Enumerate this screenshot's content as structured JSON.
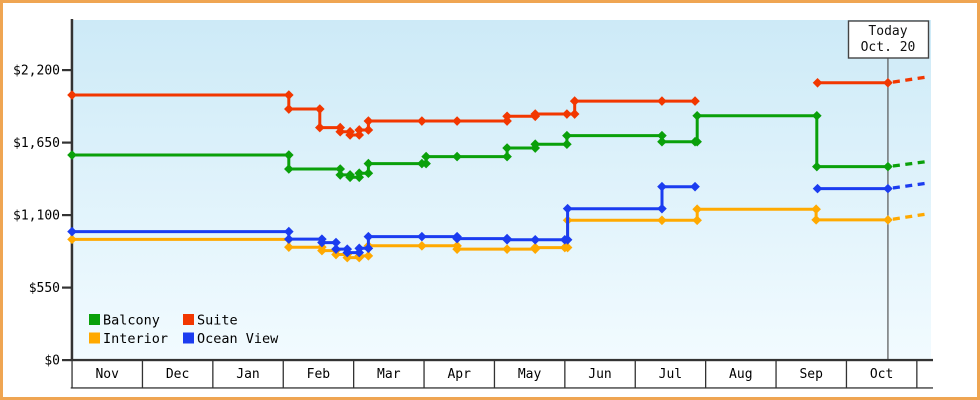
{
  "chart_data": {
    "type": "line",
    "subtype": "step-price-history",
    "title": "",
    "xlabel": "",
    "ylabel": "",
    "x_axis": {
      "months": [
        "Nov",
        "Dec",
        "Jan",
        "Feb",
        "Mar",
        "Apr",
        "May",
        "Jun",
        "Jul",
        "Aug",
        "Sep",
        "Oct"
      ]
    },
    "y_axis": {
      "ticks": [
        {
          "value": 2200,
          "label": "$2,200"
        },
        {
          "value": 1650,
          "label": "$1,650"
        },
        {
          "value": 1100,
          "label": "$1,100"
        },
        {
          "value": 550,
          "label": "$550"
        },
        {
          "value": 0,
          "label": "$0"
        }
      ],
      "ylim": [
        0,
        2580
      ]
    },
    "today": {
      "line1": "Today",
      "line2": "Oct. 20",
      "month_x": 11.59
    },
    "note": "x unit = months from Nov 1 (0 = Nov 1, 1 = Dec 1 ...). Gaps between segments = no price available.",
    "series": [
      {
        "name": "Interior",
        "color": "#ffa900",
        "segments": [
          [
            [
              0,
              915
            ],
            [
              3.08,
              915
            ],
            [
              3.08,
              856
            ],
            [
              3.55,
              856
            ],
            [
              3.55,
              830
            ],
            [
              3.75,
              830
            ],
            [
              3.75,
              800
            ],
            [
              3.91,
              800
            ],
            [
              3.91,
              777
            ],
            [
              4.08,
              777
            ],
            [
              4.08,
              790
            ],
            [
              4.21,
              790
            ],
            [
              4.21,
              866
            ],
            [
              4.97,
              866
            ],
            [
              5.47,
              866
            ],
            [
              5.47,
              841
            ],
            [
              6.18,
              841
            ],
            [
              6.58,
              841
            ],
            [
              6.58,
              853
            ],
            [
              7.0,
              853
            ],
            [
              7.04,
              853
            ],
            [
              7.04,
              1060
            ],
            [
              8.38,
              1060
            ],
            [
              8.88,
              1060
            ],
            [
              8.88,
              1144
            ],
            [
              10.57,
              1144
            ],
            [
              10.57,
              1063
            ],
            [
              11.59,
              1063
            ]
          ]
        ],
        "projection": [
          [
            11.66,
            1068
          ],
          [
            12.15,
            1108
          ]
        ]
      },
      {
        "name": "Ocean View",
        "color": "#1b3cf0",
        "segments": [
          [
            [
              0,
              974
            ],
            [
              3.08,
              974
            ],
            [
              3.08,
              917
            ],
            [
              3.55,
              917
            ],
            [
              3.55,
              891
            ],
            [
              3.75,
              891
            ],
            [
              3.75,
              841
            ],
            [
              3.91,
              841
            ],
            [
              3.91,
              815
            ],
            [
              4.08,
              815
            ],
            [
              4.08,
              847
            ],
            [
              4.21,
              847
            ],
            [
              4.21,
              936
            ],
            [
              4.97,
              936
            ],
            [
              5.47,
              936
            ],
            [
              5.47,
              921
            ],
            [
              6.18,
              921
            ],
            [
              6.18,
              912
            ],
            [
              6.58,
              912
            ],
            [
              7.0,
              912
            ],
            [
              7.04,
              912
            ],
            [
              7.04,
              1148
            ],
            [
              8.38,
              1148
            ],
            [
              8.38,
              1315
            ],
            [
              8.85,
              1315
            ]
          ],
          [
            [
              10.59,
              1300
            ],
            [
              11.59,
              1300
            ]
          ]
        ],
        "projection": [
          [
            11.66,
            1305
          ],
          [
            12.15,
            1342
          ]
        ]
      },
      {
        "name": "Balcony",
        "color": "#0aa00a",
        "segments": [
          [
            [
              0,
              1555
            ],
            [
              3.08,
              1555
            ],
            [
              3.08,
              1449
            ],
            [
              3.81,
              1449
            ],
            [
              3.81,
              1404
            ],
            [
              3.95,
              1404
            ],
            [
              3.95,
              1386
            ],
            [
              4.08,
              1386
            ],
            [
              4.08,
              1417
            ],
            [
              4.21,
              1417
            ],
            [
              4.21,
              1490
            ],
            [
              4.97,
              1490
            ],
            [
              5.03,
              1490
            ],
            [
              5.03,
              1543
            ],
            [
              5.47,
              1543
            ],
            [
              6.18,
              1543
            ],
            [
              6.18,
              1608
            ],
            [
              6.58,
              1608
            ],
            [
              6.58,
              1637
            ],
            [
              7.03,
              1637
            ],
            [
              7.03,
              1702
            ],
            [
              8.38,
              1702
            ],
            [
              8.38,
              1656
            ],
            [
              8.85,
              1656
            ],
            [
              8.88,
              1656
            ],
            [
              8.88,
              1853
            ],
            [
              10.58,
              1853
            ],
            [
              10.58,
              1467
            ],
            [
              11.59,
              1467
            ]
          ]
        ],
        "projection": [
          [
            11.66,
            1472
          ],
          [
            12.15,
            1506
          ]
        ]
      },
      {
        "name": "Suite",
        "color": "#f23700",
        "segments": [
          [
            [
              0,
              2010
            ],
            [
              3.08,
              2010
            ],
            [
              3.08,
              1904
            ],
            [
              3.52,
              1904
            ],
            [
              3.52,
              1763
            ],
            [
              3.81,
              1763
            ],
            [
              3.81,
              1732
            ],
            [
              3.95,
              1732
            ],
            [
              3.95,
              1707
            ],
            [
              4.08,
              1707
            ],
            [
              4.08,
              1745
            ],
            [
              4.21,
              1745
            ],
            [
              4.21,
              1813
            ],
            [
              4.97,
              1813
            ],
            [
              5.47,
              1813
            ],
            [
              6.18,
              1813
            ],
            [
              6.18,
              1849
            ],
            [
              6.58,
              1849
            ],
            [
              6.58,
              1866
            ],
            [
              7.03,
              1866
            ],
            [
              7.14,
              1866
            ],
            [
              7.14,
              1964
            ],
            [
              8.38,
              1964
            ],
            [
              8.85,
              1964
            ]
          ],
          [
            [
              10.59,
              2103
            ],
            [
              11.59,
              2103
            ]
          ]
        ],
        "projection": [
          [
            11.66,
            2108
          ],
          [
            12.15,
            2148
          ]
        ]
      }
    ],
    "legend": {
      "items": [
        {
          "label": "Balcony",
          "color": "#0aa00a"
        },
        {
          "label": "Suite",
          "color": "#f23700"
        },
        {
          "label": "Interior",
          "color": "#ffa900"
        },
        {
          "label": "Ocean View",
          "color": "#1b3cf0"
        }
      ]
    },
    "frame_color": "#efa552",
    "axis_color": "#333333",
    "plot_gradient": {
      "top": "#cdeaf7",
      "bottom": "#f2fbff"
    }
  }
}
